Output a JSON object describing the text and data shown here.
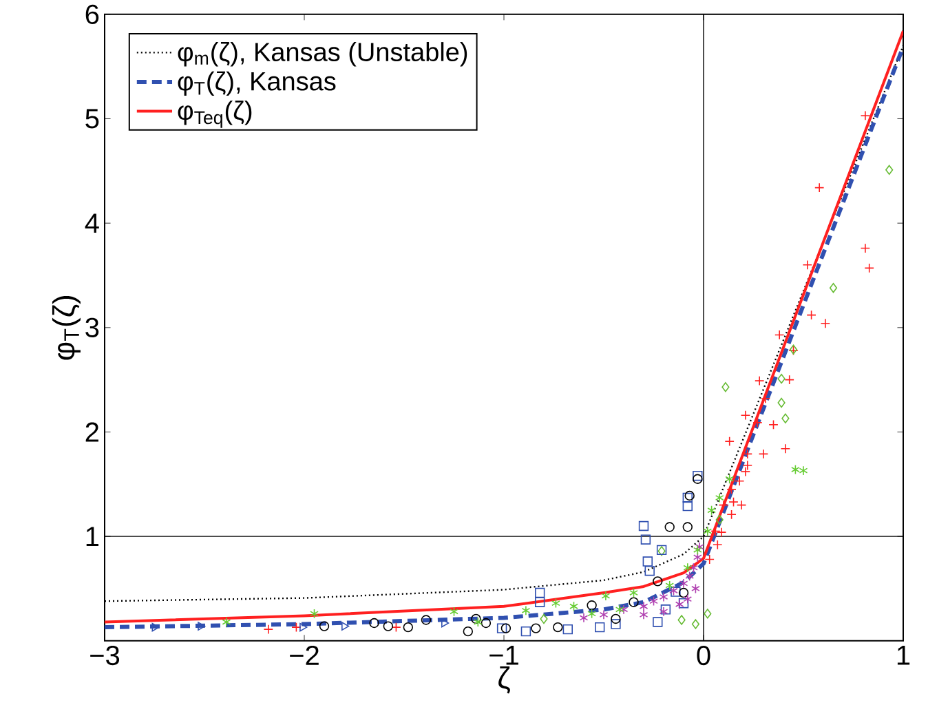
{
  "chart_data": {
    "type": "scatter",
    "xlabel": "ζ",
    "ylabel": "φ$_{T}$(ζ)",
    "xlim": [
      -3,
      1
    ],
    "ylim": [
      0,
      6
    ],
    "xticks": [
      {
        "value": -3,
        "label": "−3"
      },
      {
        "value": -2,
        "label": "−2"
      },
      {
        "value": -1,
        "label": "−1"
      },
      0,
      1
    ],
    "yticks": [
      1,
      2,
      3,
      4,
      5,
      6
    ],
    "grid": false,
    "legend": "top left",
    "ref_lines": [
      {
        "axis": "x",
        "value": 0,
        "color": "#000000"
      },
      {
        "axis": "y",
        "value": 1,
        "color": "#000000"
      }
    ],
    "series": [
      {
        "marker": "cross",
        "color": "#ff2020",
        "x": [
          0.81,
          0.58,
          0.81,
          0.83,
          0.52,
          0.54,
          0.61,
          0.38,
          0.45,
          0.28,
          0.43,
          0.31,
          0.21,
          0.27,
          0.35,
          0.13,
          0.22,
          0.3,
          0.41,
          0.22,
          0.21,
          0.18,
          0.14,
          0.19,
          0.15,
          0.1,
          0.14,
          0.09,
          0.06,
          0.07,
          0.03,
          -2.18,
          -2.04,
          -1.54
        ],
        "values": [
          5.03,
          4.34,
          3.76,
          3.57,
          3.6,
          3.12,
          3.04,
          2.93,
          2.78,
          2.49,
          2.5,
          2.32,
          2.16,
          2.09,
          2.07,
          1.91,
          1.79,
          1.79,
          1.84,
          1.68,
          1.62,
          1.53,
          1.45,
          1.3,
          1.33,
          1.3,
          1.21,
          1.04,
          1.05,
          0.92,
          0.78,
          0.11,
          0.13,
          0.13
        ]
      },
      {
        "marker": "diamond",
        "color": "#66bb33",
        "x": [
          0.93,
          0.65,
          0.11,
          0.45,
          0.39,
          0.39,
          0.41,
          0.08,
          0.02,
          -0.04,
          -0.11,
          -0.21,
          -0.8
        ],
        "values": [
          4.51,
          3.38,
          2.43,
          2.79,
          2.51,
          2.28,
          2.13,
          1.16,
          0.26,
          0.16,
          0.2,
          0.86,
          0.21
        ]
      },
      {
        "marker": "square",
        "color": "#3050b0",
        "x": [
          -0.03,
          -0.08,
          -0.08,
          -0.3,
          -0.29,
          -0.21,
          -0.28,
          -0.27,
          -0.82,
          -0.82,
          -1.01,
          -0.89,
          -0.68,
          -0.52,
          -0.44,
          -0.23,
          -0.1,
          -0.14,
          -0.19
        ],
        "values": [
          1.58,
          1.37,
          1.29,
          1.1,
          0.97,
          0.87,
          0.76,
          0.67,
          0.46,
          0.37,
          0.12,
          0.09,
          0.11,
          0.13,
          0.16,
          0.18,
          0.36,
          0.47,
          0.3
        ]
      },
      {
        "marker": "circle",
        "color": "#000000",
        "x": [
          -1.9,
          -1.65,
          -1.58,
          -1.48,
          -1.39,
          -1.18,
          -1.14,
          -0.03,
          -0.07,
          -0.17,
          -0.08,
          -0.99,
          -0.84,
          -0.73,
          -0.56,
          -0.44,
          -0.35,
          -0.23,
          -0.1,
          -1.09
        ],
        "values": [
          0.14,
          0.17,
          0.14,
          0.13,
          0.2,
          0.09,
          0.21,
          1.55,
          1.39,
          1.09,
          1.09,
          0.12,
          0.12,
          0.13,
          0.34,
          0.21,
          0.37,
          0.57,
          0.46,
          0.17
        ]
      },
      {
        "color": "#b040b0",
        "x": [
          -0.6,
          -0.5,
          -0.4,
          -0.3,
          -0.25,
          -0.2,
          -0.15,
          -0.1,
          -0.07,
          -0.05,
          -0.03,
          -0.02,
          -0.12,
          -0.08,
          -0.04,
          -0.3,
          -0.2
        ],
        "values": [
          0.22,
          0.25,
          0.3,
          0.33,
          0.38,
          0.42,
          0.48,
          0.55,
          0.62,
          0.7,
          0.8,
          0.9,
          0.35,
          0.4,
          0.5,
          0.25,
          0.28
        ]
      },
      {
        "color": "#66cc33",
        "x": [
          0.46,
          0.5,
          0.13,
          0.08,
          0.04,
          0.02,
          -2.39,
          -1.95,
          -1.25,
          -1.13,
          -0.49,
          -0.35,
          -0.74,
          -0.89,
          -0.65,
          -0.17,
          -0.08,
          -0.03,
          -0.56,
          -0.42
        ],
        "values": [
          1.64,
          1.63,
          1.55,
          1.37,
          1.25,
          1.05,
          0.18,
          0.26,
          0.28,
          0.18,
          0.43,
          0.46,
          0.36,
          0.29,
          0.33,
          0.53,
          0.7,
          0.87,
          0.26,
          0.3
        ]
      },
      {
        "marker": "triangle",
        "color": "#3050b0",
        "x": [
          -2.75,
          -2.52,
          -2.01,
          -1.8,
          -1.3
        ],
        "values": [
          0.13,
          0.14,
          0.13,
          0.14,
          0.17
        ]
      },
      {
        "type": "line",
        "name": "φ$_{m}$(ζ), Kansas (Unstable)",
        "line_style": "dotted",
        "marker": "none",
        "color": "#000000",
        "x": [
          -3,
          -2,
          -1,
          -0.5,
          -0.3,
          -0.1,
          0,
          1
        ],
        "values": [
          0.38,
          0.41,
          0.49,
          0.58,
          0.66,
          0.83,
          1.0,
          5.7
        ]
      },
      {
        "type": "line",
        "name": "φ$_{T}$(ζ), Kansas",
        "line_style": "dashed",
        "marker": "none",
        "color": "#3050b0",
        "x": [
          -3,
          -2,
          -1,
          -0.5,
          -0.3,
          -0.1,
          -0.05,
          0,
          1
        ],
        "values": [
          0.13,
          0.16,
          0.22,
          0.3,
          0.37,
          0.56,
          0.65,
          0.74,
          5.69
        ]
      },
      {
        "type": "line",
        "name": "φ$_{Teq}$(ζ)",
        "line_style": "solid",
        "marker": "none",
        "color": "#ff2020",
        "x": [
          -3,
          -2,
          -1,
          -0.5,
          -0.3,
          -0.1,
          0,
          1
        ],
        "values": [
          0.18,
          0.24,
          0.33,
          0.46,
          0.52,
          0.65,
          0.79,
          5.84
        ]
      }
    ]
  }
}
